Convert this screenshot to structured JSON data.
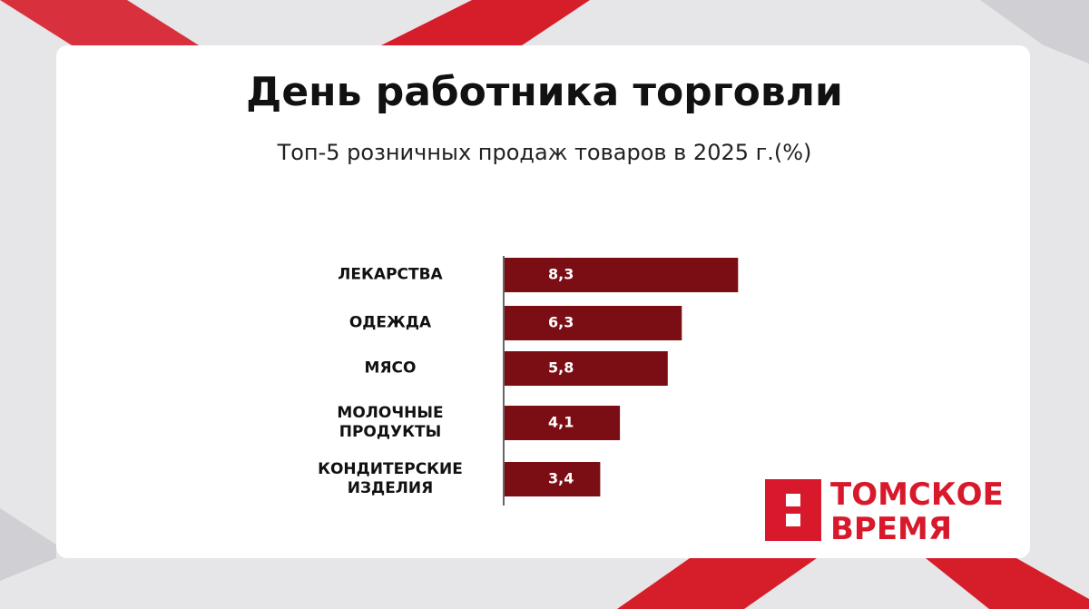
{
  "title": "День работника торговли",
  "chart_data": {
    "type": "hbar",
    "title": "Топ-5 розничных продаж товаров в 2025 г.(%)",
    "categories": [
      "ЛЕКАРСТВА",
      "ОДЕЖДА",
      "МЯСО",
      "МОЛОЧНЫЕ ПРОДУКТЫ",
      "КОНДИТЕРСКИЕ ИЗДЕЛИЯ"
    ],
    "values": [
      8.3,
      6.3,
      5.8,
      4.1,
      3.4
    ],
    "value_labels": [
      "8,3",
      "6,3",
      "5,8",
      "4,1",
      "3,4"
    ],
    "color": "#7b0e14",
    "xlim": [
      0,
      10
    ]
  },
  "logo": "ТОМСКОЕ ВРЕМЯ"
}
